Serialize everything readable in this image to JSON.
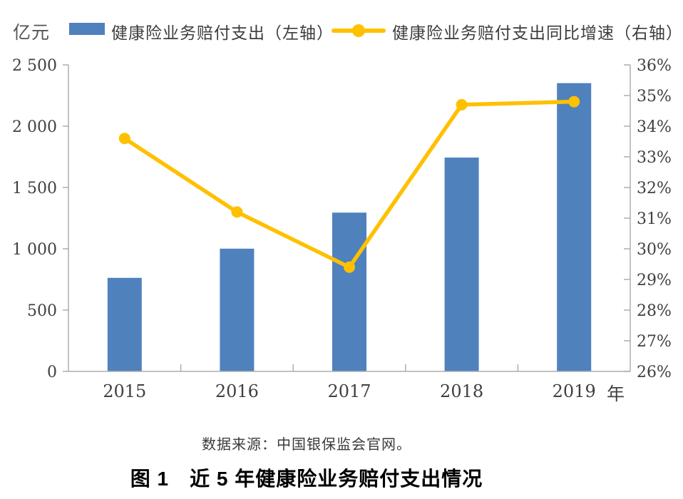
{
  "page": {
    "background": "#FFFFFF"
  },
  "legend": {
    "items": [
      {
        "label": "健康险业务赔付支出（左轴）",
        "marker": "bar-swatch",
        "color": "#4F81BD"
      },
      {
        "label": "健康险业务赔付支出同比增速（右轴）",
        "marker": "line-marker",
        "color": "#FFC000"
      }
    ]
  },
  "chart_data": {
    "type": "bar",
    "categories": [
      "2015",
      "2016",
      "2017",
      "2018",
      "2019"
    ],
    "series": [
      {
        "name": "健康险业务赔付支出（左轴）",
        "type": "bar",
        "axis": "left",
        "unit": "亿元",
        "values": [
          763,
          1001,
          1295,
          1744,
          2351
        ],
        "color": "#4F81BD"
      },
      {
        "name": "健康险业务赔付支出同比增速（右轴）",
        "type": "line",
        "axis": "right",
        "unit": "%",
        "values": [
          33.6,
          31.2,
          29.4,
          34.7,
          34.8
        ],
        "color": "#FFC000"
      }
    ],
    "left_axis": {
      "unit": "亿元",
      "min": 0,
      "max": 2500,
      "step": 500,
      "tick_labels": [
        "0",
        "500",
        "1 000",
        "1 500",
        "2 000",
        "2 500"
      ]
    },
    "right_axis": {
      "min": 26,
      "max": 36,
      "step": 1,
      "tick_labels": [
        "26%",
        "27%",
        "28%",
        "29%",
        "30%",
        "31%",
        "32%",
        "33%",
        "34%",
        "35%",
        "36%"
      ]
    },
    "x_axis": {
      "unit": "年"
    },
    "legend_position": "top",
    "grid": false,
    "axis_color": "#ADADAD",
    "tick_label_color": "#404040"
  },
  "captions": {
    "source": "数据来源：中国银保监会官网。",
    "figure_title": "图 1　近 5 年健康险业务赔付支出情况"
  }
}
